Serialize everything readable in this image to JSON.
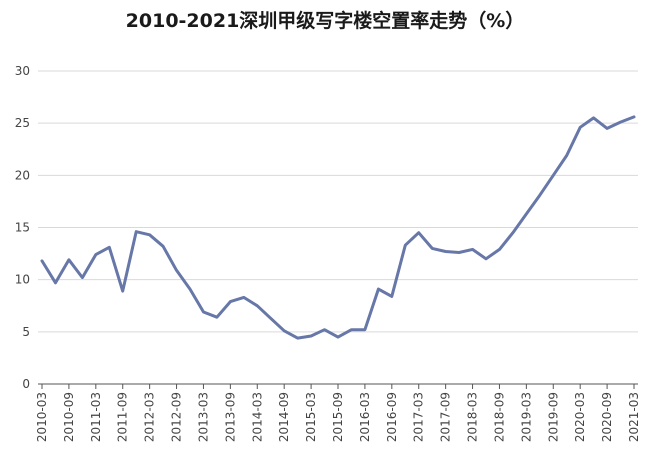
{
  "chart_data": {
    "type": "line",
    "title": "2010-2021深圳甲级写字楼空置率走势（%）",
    "xlabel": "",
    "ylabel": "",
    "ylim": [
      0,
      30
    ],
    "yticks": [
      "0",
      "5",
      "10",
      "15",
      "20",
      "25",
      "30"
    ],
    "grid": true,
    "x_tick_labels": [
      "2010-03",
      "2010-09",
      "2011-03",
      "2011-09",
      "2012-03",
      "2012-09",
      "2013-03",
      "2013-09",
      "2014-03",
      "2014-09",
      "2015-03",
      "2015-09",
      "2016-03",
      "2016-09",
      "2017-03",
      "2017-09",
      "2018-03",
      "2018-09",
      "2019-03",
      "2019-09",
      "2020-03",
      "2020-09",
      "2021-03"
    ],
    "x": [
      "2010-03",
      "2010-06",
      "2010-09",
      "2010-12",
      "2011-03",
      "2011-06",
      "2011-09",
      "2011-12",
      "2012-03",
      "2012-06",
      "2012-09",
      "2012-12",
      "2013-03",
      "2013-06",
      "2013-09",
      "2013-12",
      "2014-03",
      "2014-06",
      "2014-09",
      "2014-12",
      "2015-03",
      "2015-06",
      "2015-09",
      "2015-12",
      "2016-03",
      "2016-06",
      "2016-09",
      "2016-12",
      "2017-03",
      "2017-06",
      "2017-09",
      "2017-12",
      "2018-03",
      "2018-06",
      "2018-09",
      "2018-12",
      "2019-03",
      "2019-06",
      "2019-09",
      "2019-12",
      "2020-03",
      "2020-06",
      "2020-09",
      "2020-12",
      "2021-03"
    ],
    "series": [
      {
        "color": "#6677a8",
        "values": [
          11.8,
          9.7,
          11.9,
          10.2,
          12.4,
          13.1,
          8.9,
          14.6,
          14.3,
          13.2,
          10.9,
          9.1,
          6.9,
          6.4,
          7.9,
          8.3,
          7.5,
          6.3,
          5.1,
          4.4,
          4.6,
          5.2,
          4.5,
          5.2,
          5.2,
          9.1,
          8.4,
          13.3,
          14.5,
          13.0,
          12.7,
          12.6,
          12.9,
          12.0,
          12.9,
          14.5,
          16.3,
          18.1,
          20.0,
          21.9,
          24.6,
          25.5,
          24.5,
          25.1,
          25.6
        ]
      }
    ]
  }
}
